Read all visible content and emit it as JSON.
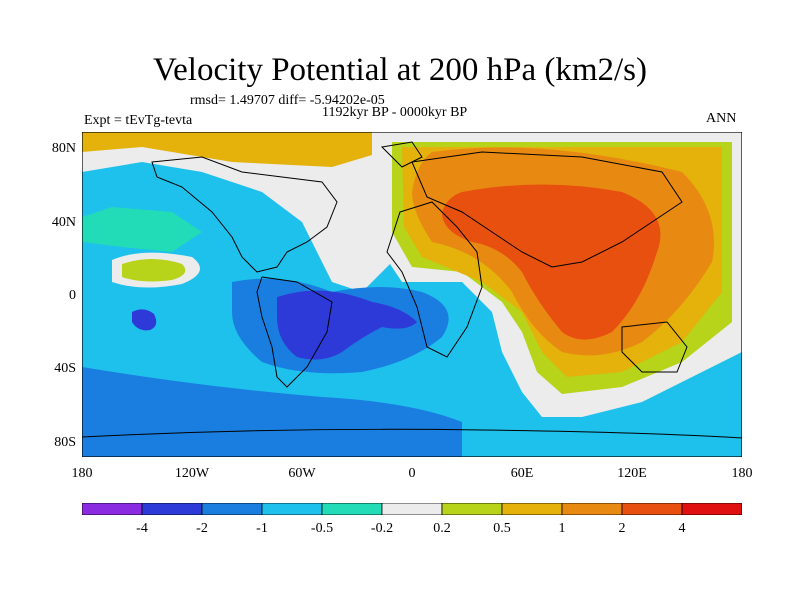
{
  "title": "Velocity Potential at 200 hPa (km2/s)",
  "stats_line": "rmsd= 1.49707 diff= -5.94202e-05",
  "period": "1192kyr BP - 0000kyr BP",
  "experiment": "Expt = tEvTg-tevta",
  "season": "ANN",
  "lat_labels": [
    "80N",
    "40N",
    "0",
    "40S",
    "80S"
  ],
  "lon_labels": [
    "180",
    "120W",
    "60W",
    "0",
    "60E",
    "120E",
    "180"
  ],
  "colorbar": {
    "labels": [
      "-4",
      "-2",
      "-1",
      "-0.5",
      "-0.2",
      "0.2",
      "0.5",
      "1",
      "2",
      "4"
    ],
    "colors": [
      "#8a2be2",
      "#2e3ad8",
      "#1a7ee0",
      "#1ec0ec",
      "#22dcb8",
      "#ececec",
      "#b7d31a",
      "#e4b20a",
      "#e88a12",
      "#e8500f",
      "#e01010"
    ]
  }
}
